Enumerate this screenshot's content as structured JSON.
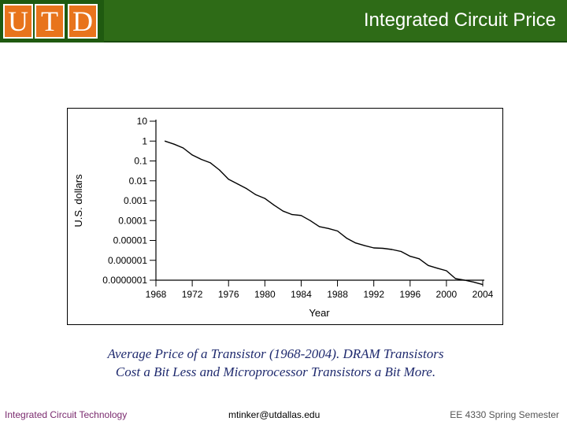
{
  "header": {
    "logo_letters": [
      "U",
      "T",
      "D"
    ],
    "title": "Integrated Circuit Price"
  },
  "chart_data": {
    "type": "line",
    "title": "",
    "xlabel": "Year",
    "ylabel": "U.S. dollars",
    "x_ticks": [
      "1968",
      "1972",
      "1976",
      "1980",
      "1984",
      "1988",
      "1992",
      "1996",
      "2000",
      "2004"
    ],
    "y_ticks": [
      "10",
      "1",
      "0.1",
      "0.01",
      "0.001",
      "0.0001",
      "0.00001",
      "0.000001",
      "0.0000001"
    ],
    "xlim": [
      1968,
      2004
    ],
    "ylim_log10": [
      -7,
      1
    ],
    "y_scale": "log",
    "series": [
      {
        "name": "Average price of a transistor",
        "x": [
          1969,
          1970,
          1971,
          1972,
          1973,
          1974,
          1975,
          1976,
          1977,
          1978,
          1979,
          1980,
          1981,
          1982,
          1983,
          1984,
          1985,
          1986,
          1987,
          1988,
          1989,
          1990,
          1991,
          1992,
          1993,
          1994,
          1995,
          1996,
          1997,
          1998,
          1999,
          2000,
          2001,
          2002,
          2003,
          2004
        ],
        "y": [
          1.0,
          0.7,
          0.45,
          0.2,
          0.12,
          0.08,
          0.035,
          0.012,
          0.007,
          0.004,
          0.002,
          0.0013,
          0.0006,
          0.0003,
          0.0002,
          0.00018,
          0.0001,
          5e-05,
          4e-05,
          3e-05,
          1.3e-05,
          7.5e-06,
          5.5e-06,
          4.2e-06,
          4e-06,
          3.5e-06,
          2.8e-06,
          1.6e-06,
          1.2e-06,
          5.5e-07,
          4e-07,
          3e-07,
          1.2e-07,
          1e-07,
          8e-08,
          6e-08
        ]
      }
    ]
  },
  "caption": {
    "line1": "Average Price of a Transistor (1968-2004).  DRAM Transistors",
    "line2": "Cost a Bit Less and Microprocessor Transistors a Bit More."
  },
  "footer": {
    "left": "Integrated Circuit Technology",
    "center": "mtinker@utdallas.edu",
    "right": "EE 4330 Spring Semester"
  }
}
